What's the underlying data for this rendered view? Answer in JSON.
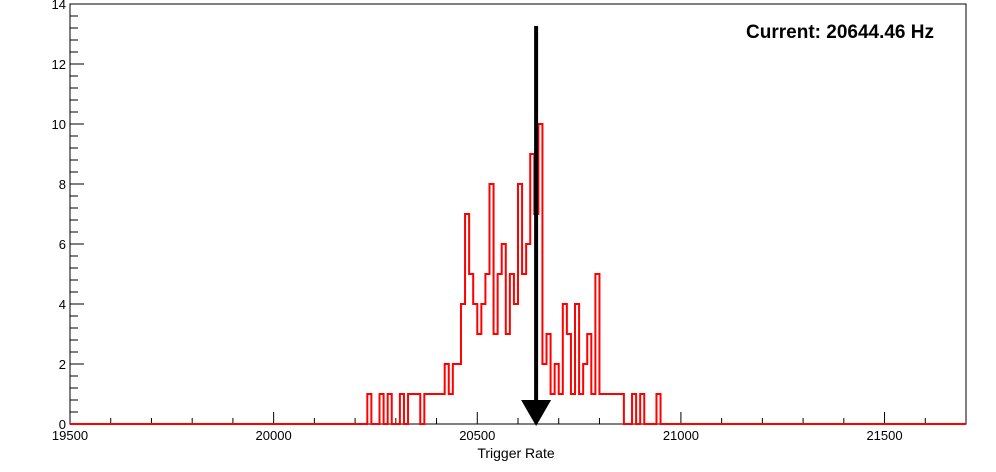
{
  "chart_data": {
    "type": "histogram",
    "xlabel": "Trigger Rate",
    "ylabel": "",
    "title": "",
    "xlim": [
      19500,
      21700
    ],
    "ylim": [
      0,
      14
    ],
    "x_ticks": [
      19500,
      20000,
      20500,
      21000,
      21500
    ],
    "y_ticks": [
      0,
      2,
      4,
      6,
      8,
      10,
      12,
      14
    ],
    "bin_width": 10,
    "series": [
      {
        "color": "#ff0000",
        "bins": [
          [
            20230,
            1
          ],
          [
            20260,
            1
          ],
          [
            20280,
            1
          ],
          [
            20310,
            1
          ],
          [
            20330,
            1
          ],
          [
            20340,
            1
          ],
          [
            20350,
            1
          ],
          [
            20370,
            1
          ],
          [
            20380,
            1
          ],
          [
            20390,
            1
          ],
          [
            20400,
            1
          ],
          [
            20410,
            1
          ],
          [
            20420,
            2
          ],
          [
            20430,
            1
          ],
          [
            20440,
            2
          ],
          [
            20450,
            2
          ],
          [
            20460,
            4
          ],
          [
            20470,
            7
          ],
          [
            20480,
            5
          ],
          [
            20490,
            4
          ],
          [
            20500,
            3
          ],
          [
            20510,
            4
          ],
          [
            20520,
            5
          ],
          [
            20530,
            8
          ],
          [
            20540,
            3
          ],
          [
            20550,
            5
          ],
          [
            20560,
            6
          ],
          [
            20570,
            3
          ],
          [
            20580,
            5
          ],
          [
            20590,
            4
          ],
          [
            20600,
            8
          ],
          [
            20610,
            5
          ],
          [
            20620,
            6
          ],
          [
            20630,
            9
          ],
          [
            20640,
            7
          ],
          [
            20650,
            10
          ],
          [
            20660,
            2
          ],
          [
            20670,
            3
          ],
          [
            20680,
            1
          ],
          [
            20690,
            2
          ],
          [
            20700,
            1
          ],
          [
            20710,
            4
          ],
          [
            20720,
            3
          ],
          [
            20730,
            1
          ],
          [
            20740,
            4
          ],
          [
            20750,
            1
          ],
          [
            20760,
            2
          ],
          [
            20770,
            3
          ],
          [
            20780,
            1
          ],
          [
            20790,
            5
          ],
          [
            20800,
            1
          ],
          [
            20810,
            1
          ],
          [
            20820,
            1
          ],
          [
            20830,
            1
          ],
          [
            20840,
            1
          ],
          [
            20850,
            1
          ],
          [
            20880,
            1
          ],
          [
            20900,
            1
          ],
          [
            20940,
            1
          ]
        ]
      }
    ],
    "current_value": 20644.46,
    "annotation": "Current: 20644.46 Hz"
  }
}
